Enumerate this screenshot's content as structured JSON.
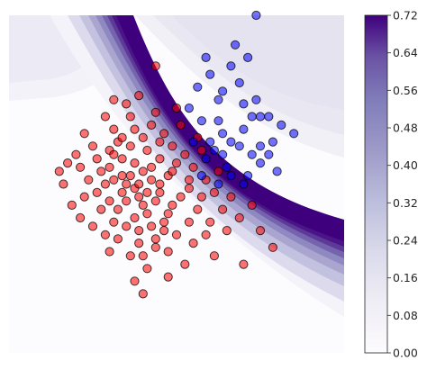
{
  "chart_data": {
    "type": "contour",
    "title": "",
    "xlabel": "",
    "ylabel": "",
    "axes_visible": false,
    "grid": false,
    "legend": "none",
    "colormap": "Purples",
    "colorbar": {
      "position": "right",
      "range": [
        0.0,
        0.72
      ],
      "ticks": [
        0.0,
        0.08,
        0.16,
        0.24,
        0.32,
        0.4,
        0.48,
        0.56,
        0.64,
        0.72
      ],
      "tick_labels": [
        "0.00",
        "0.08",
        "0.16",
        "0.24",
        "0.32",
        "0.40",
        "0.48",
        "0.56",
        "0.64",
        "0.72"
      ]
    },
    "xlim": [
      -4.0,
      4.0
    ],
    "ylim": [
      -4.0,
      4.0
    ],
    "series": [
      {
        "color": "#ff0000",
        "points": [
          [
            -1.0,
            0.5
          ],
          [
            -1.3,
            0.2
          ],
          [
            -0.6,
            0.1
          ],
          [
            -0.9,
            -0.3
          ],
          [
            -1.6,
            0.8
          ],
          [
            -0.4,
            0.6
          ],
          [
            -1.1,
            0.9
          ],
          [
            -2.2,
            -0.3
          ],
          [
            -0.7,
            -0.7
          ],
          [
            -1.4,
            -0.6
          ],
          [
            -0.2,
            0.2
          ],
          [
            -1.8,
            0.3
          ],
          [
            -0.8,
            1.1
          ],
          [
            -2.6,
            0.5
          ],
          [
            -1.2,
            -1.0
          ],
          [
            -0.5,
            -0.4
          ],
          [
            -1.7,
            -1.2
          ],
          [
            0.1,
            -0.3
          ],
          [
            -0.3,
            -1.1
          ],
          [
            -1.5,
            1.3
          ],
          [
            -2.0,
            0.9
          ],
          [
            0.4,
            0.4
          ],
          [
            -0.9,
            -1.4
          ],
          [
            -2.3,
            -0.8
          ],
          [
            -0.1,
            0.9
          ],
          [
            -1.1,
            1.6
          ],
          [
            0.3,
            -0.9
          ],
          [
            -0.6,
            1.4
          ],
          [
            -1.9,
            -0.2
          ],
          [
            -1.0,
            -0.1
          ],
          [
            -0.4,
            -0.2
          ],
          [
            -1.3,
            0.6
          ],
          [
            -2.7,
            0.0
          ],
          [
            0.7,
            0.1
          ],
          [
            -0.8,
            0.3
          ],
          [
            -1.5,
            -0.9
          ],
          [
            -0.2,
            -0.7
          ],
          [
            -1.6,
            0.4
          ],
          [
            0.0,
            0.5
          ],
          [
            -1.2,
            -0.4
          ],
          [
            -0.7,
            0.8
          ],
          [
            -2.1,
            0.1
          ],
          [
            0.5,
            -0.6
          ],
          [
            -1.4,
            1.0
          ],
          [
            -0.3,
            1.2
          ],
          [
            -0.9,
            -1.1
          ],
          [
            -1.8,
            -0.6
          ],
          [
            0.2,
            0.7
          ],
          [
            -1.1,
            0.2
          ],
          [
            -0.5,
            -1.3
          ],
          [
            -2.4,
            0.7
          ],
          [
            0.9,
            -0.2
          ],
          [
            -1.0,
            1.3
          ],
          [
            -0.1,
            -0.5
          ],
          [
            -1.7,
            0.0
          ],
          [
            -0.6,
            0.4
          ],
          [
            0.6,
            0.8
          ],
          [
            -1.3,
            -0.2
          ],
          [
            -2.0,
            -1.0
          ],
          [
            -0.4,
            0.0
          ],
          [
            0.8,
            -0.9
          ],
          [
            -0.8,
            -0.5
          ],
          [
            -1.5,
            0.7
          ],
          [
            0.1,
            1.4
          ],
          [
            -1.2,
            1.9
          ],
          [
            -0.2,
            -1.6
          ],
          [
            1.1,
            -0.6
          ],
          [
            -2.5,
            -0.5
          ],
          [
            -0.7,
            -2.0
          ],
          [
            -1.9,
            0.6
          ],
          [
            0.3,
            0.1
          ],
          [
            -1.0,
            -0.8
          ],
          [
            -0.5,
            1.7
          ],
          [
            1.3,
            -0.3
          ],
          [
            -1.6,
            -1.6
          ],
          [
            0.0,
            -1.2
          ],
          [
            -2.2,
            1.2
          ],
          [
            0.4,
            -1.4
          ],
          [
            -0.9,
            0.0
          ],
          [
            -1.4,
            -1.3
          ],
          [
            1.0,
            0.3
          ],
          [
            -0.3,
            -0.9
          ],
          [
            -1.7,
            1.6
          ],
          [
            0.6,
            -0.3
          ],
          [
            -1.1,
            -1.7
          ],
          [
            -2.8,
            0.3
          ],
          [
            0.2,
            -1.9
          ],
          [
            -0.6,
            -1.0
          ],
          [
            1.5,
            -0.8
          ],
          [
            -1.3,
            1.1
          ],
          [
            -0.8,
            -1.7
          ],
          [
            -0.1,
            0.3
          ],
          [
            1.8,
            -0.5
          ],
          [
            -1.0,
            -2.3
          ],
          [
            -1.5,
            0.1
          ],
          [
            0.7,
            -1.2
          ],
          [
            -2.3,
            0.4
          ],
          [
            -0.4,
            1.0
          ],
          [
            1.2,
            -1.1
          ],
          [
            -0.2,
            -2.2
          ],
          [
            -0.8,
            -2.6
          ],
          [
            2.0,
            -1.1
          ],
          [
            -0.5,
            -1.5
          ],
          [
            0.5,
            1.1
          ],
          [
            -1.6,
            -0.4
          ],
          [
            0.9,
            -1.7
          ],
          [
            1.6,
            -1.9
          ],
          [
            -1.2,
            0.0
          ],
          [
            0.3,
            -0.1
          ],
          [
            -0.7,
            -0.2
          ],
          [
            2.3,
            -1.5
          ],
          [
            -0.9,
            2.1
          ],
          [
            -1.5,
            2.0
          ],
          [
            0.0,
            1.8
          ],
          [
            -0.5,
            2.8
          ]
        ]
      },
      {
        "color": "#0000ff",
        "points": [
          [
            0.6,
            1.5
          ],
          [
            1.0,
            2.0
          ],
          [
            1.3,
            1.0
          ],
          [
            0.8,
            2.6
          ],
          [
            1.5,
            2.4
          ],
          [
            1.8,
            1.6
          ],
          [
            1.1,
            1.2
          ],
          [
            0.3,
            1.8
          ],
          [
            2.2,
            0.7
          ],
          [
            1.6,
            1.3
          ],
          [
            0.9,
            0.8
          ],
          [
            2.5,
            1.4
          ],
          [
            1.2,
            0.4
          ],
          [
            1.7,
            0.2
          ],
          [
            0.4,
            1.0
          ],
          [
            2.0,
            0.5
          ],
          [
            1.4,
            3.3
          ],
          [
            1.0,
            1.5
          ],
          [
            2.0,
            1.6
          ],
          [
            0.7,
            0.6
          ],
          [
            1.3,
            2.8
          ],
          [
            1.9,
            2.0
          ],
          [
            2.8,
            1.2
          ],
          [
            1.7,
            3.0
          ],
          [
            0.5,
            2.3
          ],
          [
            1.1,
            0.7
          ],
          [
            2.3,
            1.0
          ],
          [
            1.5,
            0.9
          ],
          [
            0.8,
            1.0
          ],
          [
            1.6,
            0.0
          ],
          [
            2.0,
            0.9
          ],
          [
            1.1,
            2.2
          ],
          [
            1.8,
            0.7
          ],
          [
            2.4,
            0.3
          ],
          [
            0.7,
            3.0
          ],
          [
            1.3,
            0.2
          ],
          [
            1.9,
            4.0
          ],
          [
            2.2,
            1.6
          ],
          [
            0.6,
            0.2
          ],
          [
            1.6,
            1.9
          ],
          [
            1.0,
            0.0
          ]
        ]
      }
    ]
  }
}
